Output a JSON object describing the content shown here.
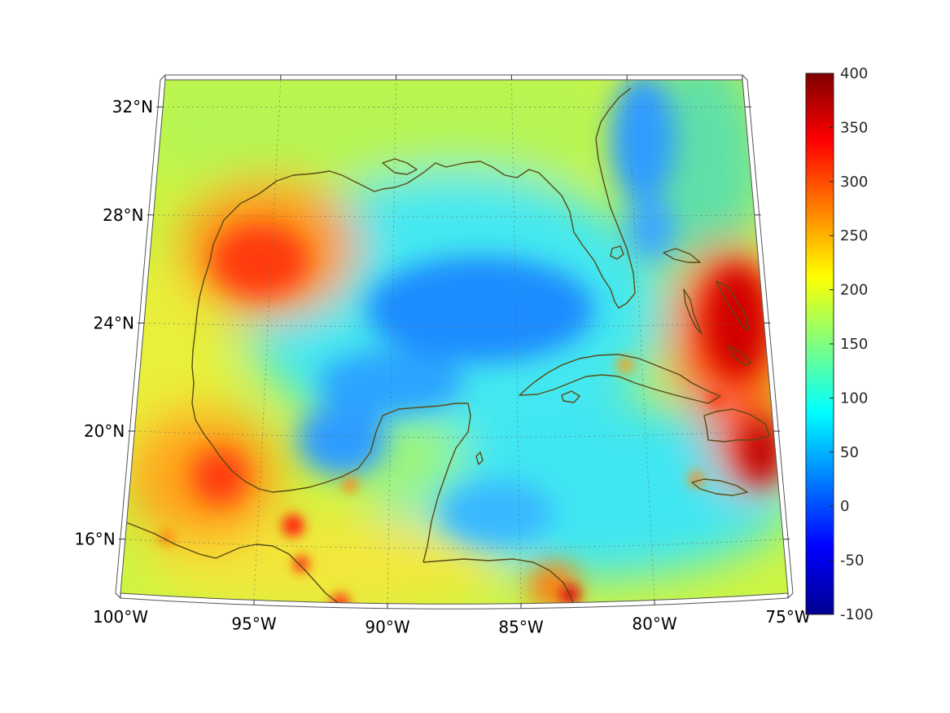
{
  "map": {
    "type": "map",
    "projection": "conic",
    "extent": {
      "lon": [
        -100,
        -75
      ],
      "lat": [
        14,
        33
      ]
    },
    "grid": true,
    "lon_ticks": [
      {
        "value": -100,
        "label": "100°W"
      },
      {
        "value": -95,
        "label": "95°W"
      },
      {
        "value": -90,
        "label": "90°W"
      },
      {
        "value": -85,
        "label": "85°W"
      },
      {
        "value": -80,
        "label": "80°W"
      },
      {
        "value": -75,
        "label": "75°W"
      }
    ],
    "lat_ticks": [
      {
        "value": 16,
        "label": "16°N"
      },
      {
        "value": 20,
        "label": "20°N"
      },
      {
        "value": 24,
        "label": "24°N"
      },
      {
        "value": 28,
        "label": "28°N"
      },
      {
        "value": 32,
        "label": "32°N"
      }
    ],
    "coastline_color": "#5a4a14",
    "field_hotspots": [
      {
        "region": "western Gulf (Texas shelf)",
        "value": 300
      },
      {
        "region": "southwestern Gulf (Veracruz)",
        "value": 330
      },
      {
        "region": "Bay of Campeche coast",
        "value": 260
      },
      {
        "region": "Bahamas / east of Florida",
        "value": 380
      },
      {
        "region": "east of Cuba / Windward Passage",
        "value": 390
      },
      {
        "region": "central Gulf deep water",
        "value": 40
      },
      {
        "region": "Gulf Stream off Georgia/Carolinas",
        "value": 60
      },
      {
        "region": "Caribbean Sea",
        "value": 110
      }
    ]
  },
  "colorbar": {
    "colormap": "jet",
    "min": -100,
    "max": 400,
    "ticks": [
      "400",
      "350",
      "300",
      "250",
      "200",
      "150",
      "100",
      "50",
      "0",
      "-50",
      "-100"
    ]
  }
}
